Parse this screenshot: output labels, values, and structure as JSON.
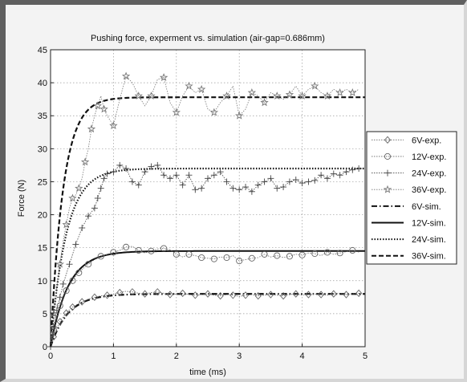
{
  "chart_data": {
    "type": "line",
    "title": "Pushing force, experment vs. simulation (air-gap=0.686mm)",
    "xlabel": "time (ms)",
    "ylabel": "Force (N)",
    "xlim": [
      0,
      5
    ],
    "ylim": [
      0,
      45
    ],
    "xticks": [
      0,
      1,
      2,
      3,
      4,
      5
    ],
    "yticks": [
      0,
      5,
      10,
      15,
      20,
      25,
      30,
      35,
      40,
      45
    ],
    "grid": true,
    "legend_position": "right",
    "simulation": [
      {
        "name": "6V-sim.",
        "style": "dashdot",
        "color": "#111111",
        "final": 8.0,
        "tau": 0.28
      },
      {
        "name": "12V-sim.",
        "style": "solid",
        "color": "#111111",
        "final": 14.5,
        "tau": 0.28
      },
      {
        "name": "24V-sim.",
        "style": "dotted",
        "color": "#111111",
        "final": 27.0,
        "tau": 0.25
      },
      {
        "name": "36V-sim.",
        "style": "dashed",
        "color": "#111111",
        "final": 37.8,
        "tau": 0.2
      }
    ],
    "experiment": [
      {
        "name": "6V-exp.",
        "marker": "diamond",
        "color": "#666666",
        "x": [
          0,
          0.05,
          0.1,
          0.15,
          0.2,
          0.25,
          0.3,
          0.35,
          0.4,
          0.5,
          0.6,
          0.7,
          0.8,
          0.9,
          1.0,
          1.1,
          1.2,
          1.3,
          1.4,
          1.5,
          1.6,
          1.7,
          1.8,
          1.9,
          2.0,
          2.1,
          2.2,
          2.3,
          2.4,
          2.5,
          2.6,
          2.7,
          2.8,
          2.9,
          3.0,
          3.1,
          3.2,
          3.3,
          3.4,
          3.5,
          3.6,
          3.7,
          3.8,
          3.9,
          4.0,
          4.1,
          4.2,
          4.3,
          4.4,
          4.5,
          4.6,
          4.7,
          4.8,
          4.9
        ],
        "y": [
          0,
          1.5,
          2.8,
          3.8,
          4.5,
          5.1,
          5.6,
          6.0,
          6.3,
          6.8,
          7.2,
          7.5,
          7.7,
          7.8,
          8.0,
          8.2,
          8.4,
          8.3,
          8.1,
          8.0,
          8.2,
          8.3,
          8.1,
          7.9,
          8.0,
          8.1,
          7.9,
          7.8,
          7.9,
          8.0,
          7.8,
          7.7,
          7.9,
          7.8,
          7.6,
          7.8,
          7.9,
          7.7,
          7.8,
          7.9,
          7.8,
          7.7,
          7.9,
          8.0,
          7.8,
          7.9,
          8.0,
          7.9,
          7.8,
          8.0,
          8.1,
          7.9,
          8.0,
          8.1
        ]
      },
      {
        "name": "12V-exp.",
        "marker": "circle",
        "color": "#666666",
        "x": [
          0,
          0.05,
          0.1,
          0.15,
          0.2,
          0.25,
          0.3,
          0.35,
          0.4,
          0.45,
          0.5,
          0.6,
          0.7,
          0.8,
          0.9,
          1.0,
          1.1,
          1.2,
          1.3,
          1.4,
          1.5,
          1.6,
          1.7,
          1.8,
          1.9,
          2.0,
          2.1,
          2.2,
          2.3,
          2.4,
          2.5,
          2.6,
          2.7,
          2.8,
          2.9,
          3.0,
          3.1,
          3.2,
          3.3,
          3.4,
          3.5,
          3.6,
          3.7,
          3.8,
          3.9,
          4.0,
          4.1,
          4.2,
          4.3,
          4.4,
          4.5,
          4.6,
          4.7,
          4.8,
          4.9
        ],
        "y": [
          0,
          2.5,
          4.5,
          6.2,
          7.5,
          8.5,
          9.3,
          10.0,
          10.7,
          11.2,
          11.7,
          12.5,
          13.2,
          13.7,
          14.0,
          14.3,
          14.6,
          15.1,
          15.2,
          14.6,
          14.2,
          14.5,
          14.8,
          14.9,
          14.7,
          14.0,
          13.6,
          14.0,
          13.8,
          13.5,
          13.4,
          13.3,
          13.6,
          13.5,
          13.8,
          13.0,
          13.2,
          13.4,
          13.5,
          14.0,
          13.6,
          13.8,
          13.5,
          13.7,
          14.0,
          13.9,
          14.2,
          14.1,
          13.8,
          14.3,
          14.0,
          14.2,
          14.4,
          14.6,
          14.3
        ]
      },
      {
        "name": "24V-exp.",
        "marker": "plus",
        "color": "#444444",
        "x": [
          0,
          0.05,
          0.1,
          0.15,
          0.2,
          0.3,
          0.4,
          0.5,
          0.6,
          0.7,
          0.75,
          0.8,
          0.85,
          0.9,
          1.0,
          1.1,
          1.2,
          1.3,
          1.4,
          1.5,
          1.6,
          1.7,
          1.8,
          1.9,
          2.0,
          2.1,
          2.2,
          2.3,
          2.4,
          2.5,
          2.6,
          2.7,
          2.8,
          2.9,
          3.0,
          3.1,
          3.2,
          3.3,
          3.4,
          3.5,
          3.6,
          3.7,
          3.8,
          3.9,
          4.0,
          4.1,
          4.2,
          4.3,
          4.4,
          4.5,
          4.6,
          4.7,
          4.8,
          4.9
        ],
        "y": [
          0,
          3.0,
          5.5,
          7.5,
          9.5,
          12.5,
          15.5,
          18.0,
          19.8,
          21.0,
          22.5,
          24.0,
          25.5,
          26.2,
          26.5,
          27.5,
          27.0,
          25.0,
          24.5,
          26.5,
          27.3,
          27.5,
          26.0,
          25.5,
          26.0,
          24.5,
          26.0,
          23.8,
          24.0,
          25.5,
          26.0,
          26.5,
          25.0,
          24.0,
          23.8,
          24.2,
          23.5,
          24.5,
          25.0,
          25.5,
          24.0,
          24.2,
          25.0,
          25.3,
          24.8,
          25.0,
          25.2,
          26.0,
          25.5,
          26.2,
          26.0,
          26.5,
          26.8,
          27.0
        ]
      },
      {
        "name": "36V-exp.",
        "marker": "star",
        "color": "#777777",
        "x": [
          0,
          0.05,
          0.1,
          0.15,
          0.2,
          0.25,
          0.3,
          0.35,
          0.4,
          0.45,
          0.5,
          0.55,
          0.6,
          0.65,
          0.7,
          0.75,
          0.8,
          0.85,
          0.9,
          1.0,
          1.1,
          1.2,
          1.3,
          1.4,
          1.5,
          1.6,
          1.7,
          1.8,
          1.9,
          2.0,
          2.1,
          2.2,
          2.3,
          2.4,
          2.5,
          2.6,
          2.7,
          2.8,
          2.9,
          3.0,
          3.1,
          3.2,
          3.3,
          3.4,
          3.5,
          3.6,
          3.7,
          3.8,
          3.9,
          4.0,
          4.1,
          4.2,
          4.3,
          4.4,
          4.5,
          4.6,
          4.7,
          4.8,
          4.9
        ],
        "y": [
          0,
          5.0,
          9.0,
          12.5,
          16.0,
          18.5,
          21.0,
          22.5,
          23.0,
          24.0,
          25.5,
          28.0,
          30.0,
          33.0,
          35.0,
          36.5,
          38.0,
          36.0,
          35.0,
          33.5,
          37.5,
          41.0,
          40.0,
          38.0,
          36.5,
          38.0,
          40.5,
          40.8,
          37.0,
          35.5,
          38.0,
          39.5,
          38.5,
          39.0,
          36.0,
          35.5,
          37.0,
          38.0,
          39.5,
          35.0,
          36.0,
          38.5,
          38.0,
          37.0,
          38.5,
          38.0,
          37.5,
          38.2,
          39.5,
          38.0,
          39.0,
          39.5,
          38.5,
          38.0,
          39.0,
          38.5,
          39.0,
          38.5,
          39.0
        ]
      }
    ]
  }
}
